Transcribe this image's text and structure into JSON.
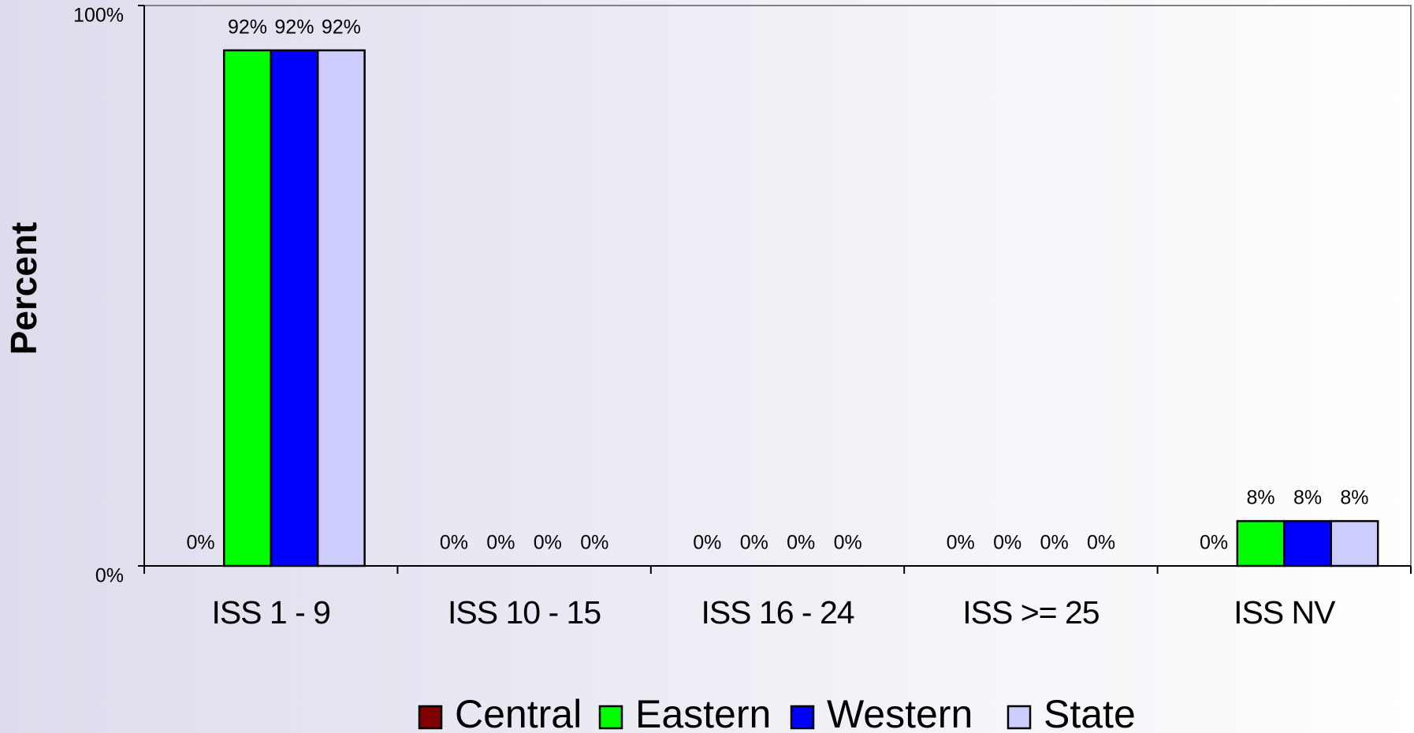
{
  "chart_data": {
    "type": "bar",
    "y_label": "Percent",
    "categories": [
      "ISS 1 - 9",
      "ISS 10 - 15",
      "ISS 16 - 24",
      "ISS >= 25",
      "ISS NV"
    ],
    "series": [
      {
        "name": "Central",
        "color": "#800000",
        "values": [
          0,
          0,
          0,
          0,
          0
        ],
        "value_labels": [
          "0%",
          "0%",
          "0%",
          "0%",
          "0%"
        ]
      },
      {
        "name": "Eastern",
        "color": "#00ff00",
        "values": [
          92,
          0,
          0,
          0,
          8
        ],
        "value_labels": [
          "92%",
          "0%",
          "0%",
          "0%",
          "8%"
        ]
      },
      {
        "name": "Western",
        "color": "#0000ff",
        "values": [
          92,
          0,
          0,
          0,
          8
        ],
        "value_labels": [
          "92%",
          "0%",
          "0%",
          "0%",
          "8%"
        ]
      },
      {
        "name": "State",
        "color": "#ccccff",
        "values": [
          92,
          0,
          0,
          0,
          8
        ],
        "value_labels": [
          "92%",
          "0%",
          "0%",
          "0%",
          "8%"
        ]
      }
    ],
    "ylim": [
      0,
      100
    ],
    "yticks": [
      {
        "value": 0,
        "label": "0%"
      },
      {
        "value": 100,
        "label": "100%"
      }
    ],
    "legend": "bottom"
  }
}
